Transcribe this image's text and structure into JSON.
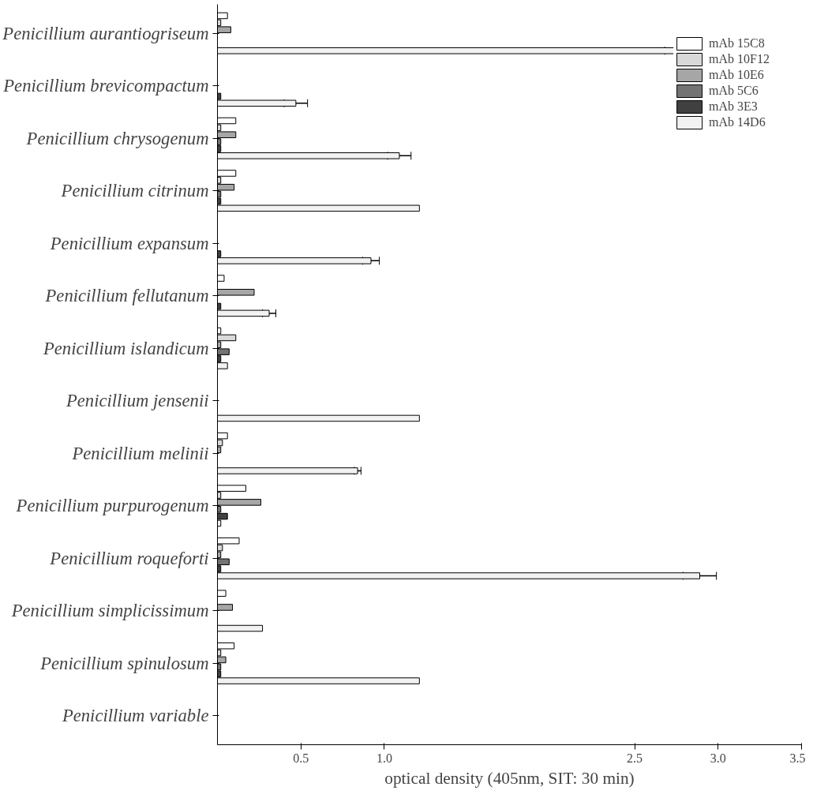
{
  "chart_data": {
    "type": "bar",
    "orientation": "horizontal",
    "xlabel": "optical density (405nm, SIT: 30 min)",
    "categories": [
      "Penicillium aurantiogriseum",
      "Penicillium brevicompactum",
      "Penicillium chrysogenum",
      "Penicillium citrinum",
      "Penicillium expansum",
      "Penicillium fellutanum",
      "Penicillium islandicum",
      "Penicillium jensenii",
      "Penicillium melinii",
      "Penicillium purpurogenum",
      "Penicillium roqueforti",
      "Penicillium simplicissimum",
      "Penicillium spinulosum",
      "Penicillium variable"
    ],
    "xlim": [
      0,
      3.5
    ],
    "xticks": [
      0.5,
      {
        "value": 1,
        "label": "1.0"
      },
      2.5,
      {
        "value": 3,
        "label": "3.0"
      },
      3.5
    ],
    "grid": false,
    "legend": "top right",
    "series": [
      {
        "name": "mAb 15C8",
        "color": "#ffffff",
        "values": [
          0.06,
          null,
          0.11,
          0.11,
          null,
          0.04,
          0.02,
          null,
          0.06,
          0.17,
          0.13,
          0.05,
          0.1,
          null
        ]
      },
      {
        "name": "mAb 10F12",
        "color": "#d9d9d9",
        "values": [
          0.02,
          null,
          0.02,
          0.02,
          null,
          null,
          0.11,
          null,
          0.03,
          0.02,
          0.03,
          null,
          0.02,
          null
        ]
      },
      {
        "name": "mAb 10E6",
        "color": "#a6a6a6",
        "values": [
          0.08,
          null,
          0.11,
          0.1,
          null,
          0.22,
          0.02,
          null,
          0.02,
          0.26,
          0.02,
          0.09,
          0.05,
          null
        ]
      },
      {
        "name": "mAb 5C6",
        "color": "#737373",
        "values": [
          null,
          null,
          0.02,
          0.02,
          null,
          null,
          0.07,
          null,
          null,
          0.02,
          0.07,
          null,
          0.02,
          null
        ]
      },
      {
        "name": "mAb 3E3",
        "color": "#404040",
        "values": [
          null,
          0.02,
          0.02,
          0.02,
          0.02,
          0.02,
          0.02,
          null,
          null,
          0.06,
          0.02,
          null,
          0.02,
          null
        ]
      },
      {
        "name": "mAb 14D6",
        "color": "#f2f2f2",
        "values": [
          2.75,
          0.47,
          1.09,
          1.21,
          0.92,
          0.31,
          0.06,
          1.21,
          0.84,
          0.02,
          2.89,
          0.27,
          1.21,
          null
        ],
        "errors": [
          0.07,
          0.07,
          0.07,
          null,
          0.05,
          0.04,
          null,
          null,
          0.02,
          null,
          0.1,
          null,
          null,
          null
        ]
      }
    ]
  }
}
